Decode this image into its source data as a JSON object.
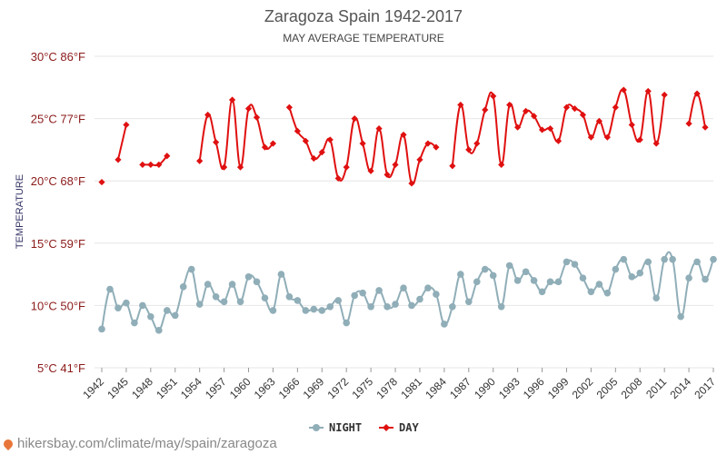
{
  "chart_data": {
    "type": "line",
    "title": "Zaragoza Spain 1942-2017",
    "subtitle": "MAY AVERAGE TEMPERATURE",
    "ylabel": "TEMPERATURE",
    "ylim": [
      5,
      30
    ],
    "xlim": [
      1942,
      2017
    ],
    "y_ticks": [
      {
        "value": 5,
        "label": "5°C 41°F"
      },
      {
        "value": 10,
        "label": "10°C 50°F"
      },
      {
        "value": 15,
        "label": "15°C 59°F"
      },
      {
        "value": 20,
        "label": "20°C 68°F"
      },
      {
        "value": 25,
        "label": "25°C 77°F"
      },
      {
        "value": 30,
        "label": "30°C 86°F"
      }
    ],
    "x_ticks": [
      1942,
      1945,
      1948,
      1951,
      1954,
      1957,
      1960,
      1963,
      1966,
      1969,
      1972,
      1975,
      1978,
      1981,
      1984,
      1987,
      1990,
      1993,
      1996,
      1999,
      2002,
      2005,
      2008,
      2011,
      2014,
      2017
    ],
    "grid": true,
    "legend": "bottom",
    "series": [
      {
        "name": "NIGHT",
        "color": "#90aeb8",
        "marker": "circle",
        "points": [
          [
            1942,
            8.1
          ],
          [
            1943,
            11.3
          ],
          [
            1944,
            9.8
          ],
          [
            1945,
            10.2
          ],
          [
            1946,
            8.6
          ],
          [
            1947,
            10.0
          ],
          [
            1948,
            9.1
          ],
          [
            1949,
            8.0
          ],
          [
            1950,
            9.6
          ],
          [
            1951,
            9.2
          ],
          [
            1952,
            11.5
          ],
          [
            1953,
            12.9
          ],
          [
            1954,
            10.1
          ],
          [
            1955,
            11.7
          ],
          [
            1956,
            10.7
          ],
          [
            1957,
            10.3
          ],
          [
            1958,
            11.7
          ],
          [
            1959,
            10.3
          ],
          [
            1960,
            12.3
          ],
          [
            1961,
            11.9
          ],
          [
            1962,
            10.6
          ],
          [
            1963,
            9.6
          ],
          [
            1964,
            12.5
          ],
          [
            1965,
            10.7
          ],
          [
            1966,
            10.4
          ],
          [
            1967,
            9.6
          ],
          [
            1968,
            9.7
          ],
          [
            1969,
            9.6
          ],
          [
            1970,
            9.9
          ],
          [
            1971,
            10.4
          ],
          [
            1972,
            8.6
          ],
          [
            1973,
            10.8
          ],
          [
            1974,
            11.0
          ],
          [
            1975,
            9.9
          ],
          [
            1976,
            11.2
          ],
          [
            1977,
            9.9
          ],
          [
            1978,
            10.1
          ],
          [
            1979,
            11.4
          ],
          [
            1980,
            10.0
          ],
          [
            1981,
            10.5
          ],
          [
            1982,
            11.4
          ],
          [
            1983,
            10.9
          ],
          [
            1984,
            8.5
          ],
          [
            1985,
            9.9
          ],
          [
            1986,
            12.5
          ],
          [
            1987,
            10.3
          ],
          [
            1988,
            11.9
          ],
          [
            1989,
            12.9
          ],
          [
            1990,
            12.4
          ],
          [
            1991,
            9.9
          ],
          [
            1992,
            13.2
          ],
          [
            1993,
            12.0
          ],
          [
            1994,
            12.7
          ],
          [
            1995,
            12.0
          ],
          [
            1996,
            11.1
          ],
          [
            1997,
            11.9
          ],
          [
            1998,
            11.9
          ],
          [
            1999,
            13.5
          ],
          [
            2000,
            13.3
          ],
          [
            2001,
            12.2
          ],
          [
            2002,
            11.1
          ],
          [
            2003,
            11.7
          ],
          [
            2004,
            11.0
          ],
          [
            2005,
            12.9
          ],
          [
            2006,
            13.7
          ],
          [
            2007,
            12.3
          ],
          [
            2008,
            12.6
          ],
          [
            2009,
            13.5
          ],
          [
            2010,
            10.6
          ],
          [
            2011,
            13.7
          ],
          [
            2012,
            13.7
          ],
          [
            2013,
            9.1
          ],
          [
            2014,
            12.2
          ],
          [
            2015,
            13.5
          ],
          [
            2016,
            12.1
          ],
          [
            2017,
            13.7
          ]
        ]
      },
      {
        "name": "DAY",
        "color": "#e01010",
        "marker": "diamond",
        "points": [
          [
            1942,
            19.9
          ],
          [
            1943,
            null
          ],
          [
            1944,
            21.7
          ],
          [
            1945,
            24.5
          ],
          [
            1946,
            null
          ],
          [
            1947,
            21.3
          ],
          [
            1948,
            21.3
          ],
          [
            1949,
            21.3
          ],
          [
            1950,
            22.0
          ],
          [
            1951,
            null
          ],
          [
            1952,
            null
          ],
          [
            1953,
            null
          ],
          [
            1954,
            21.6
          ],
          [
            1955,
            25.3
          ],
          [
            1956,
            23.1
          ],
          [
            1957,
            21.1
          ],
          [
            1958,
            26.5
          ],
          [
            1959,
            21.1
          ],
          [
            1960,
            25.8
          ],
          [
            1961,
            25.1
          ],
          [
            1962,
            22.7
          ],
          [
            1963,
            23.0
          ],
          [
            1964,
            null
          ],
          [
            1965,
            25.9
          ],
          [
            1966,
            24.0
          ],
          [
            1967,
            23.2
          ],
          [
            1968,
            21.8
          ],
          [
            1969,
            22.3
          ],
          [
            1970,
            23.3
          ],
          [
            1971,
            20.2
          ],
          [
            1972,
            21.1
          ],
          [
            1973,
            25.0
          ],
          [
            1974,
            23.0
          ],
          [
            1975,
            20.8
          ],
          [
            1976,
            24.2
          ],
          [
            1977,
            20.5
          ],
          [
            1978,
            21.3
          ],
          [
            1979,
            23.7
          ],
          [
            1980,
            19.8
          ],
          [
            1981,
            21.7
          ],
          [
            1982,
            23.0
          ],
          [
            1983,
            22.7
          ],
          [
            1984,
            null
          ],
          [
            1985,
            21.2
          ],
          [
            1986,
            26.1
          ],
          [
            1987,
            22.5
          ],
          [
            1988,
            23.0
          ],
          [
            1989,
            25.7
          ],
          [
            1990,
            26.8
          ],
          [
            1991,
            21.3
          ],
          [
            1992,
            26.1
          ],
          [
            1993,
            24.3
          ],
          [
            1994,
            25.6
          ],
          [
            1995,
            25.2
          ],
          [
            1996,
            24.1
          ],
          [
            1997,
            24.2
          ],
          [
            1998,
            23.2
          ],
          [
            1999,
            25.9
          ],
          [
            2000,
            25.8
          ],
          [
            2001,
            25.3
          ],
          [
            2002,
            23.5
          ],
          [
            2003,
            24.8
          ],
          [
            2004,
            23.5
          ],
          [
            2005,
            25.9
          ],
          [
            2006,
            27.3
          ],
          [
            2007,
            24.5
          ],
          [
            2008,
            23.3
          ],
          [
            2009,
            27.2
          ],
          [
            2010,
            23.0
          ],
          [
            2011,
            26.9
          ],
          [
            2012,
            null
          ],
          [
            2013,
            null
          ],
          [
            2014,
            24.6
          ],
          [
            2015,
            27.0
          ],
          [
            2016,
            24.3
          ],
          [
            2017,
            null
          ]
        ]
      }
    ]
  },
  "footer": {
    "text": "hikersbay.com/climate/may/spain/zaragoza",
    "icon": "location-pin-icon"
  }
}
